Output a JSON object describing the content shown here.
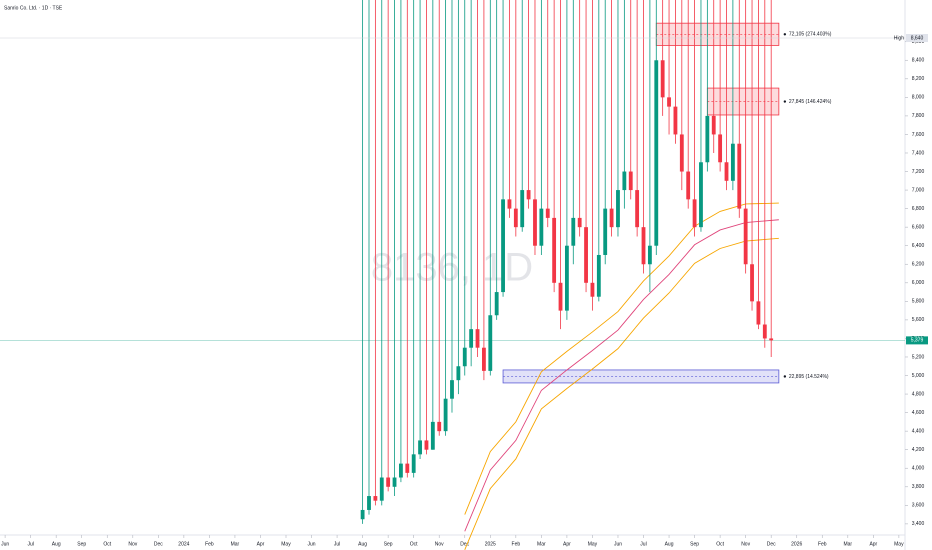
{
  "header": {
    "title": "Sanrio Co. Ltd. · 1D · TSE"
  },
  "chart_data": {
    "type": "candlestick",
    "watermark": "8136, 1D",
    "up_color": "#089981",
    "down_color": "#f23645",
    "x": [
      14.0,
      14.25,
      14.5,
      14.75,
      15.0,
      15.25,
      15.5,
      15.75,
      16.0,
      16.25,
      16.5,
      16.75,
      17.0,
      17.25,
      17.5,
      17.75,
      18.0,
      18.25,
      18.5,
      18.75,
      19.0,
      19.25,
      19.5,
      19.75,
      20.0,
      20.25,
      20.5,
      20.75,
      21.0,
      21.25,
      21.5,
      21.75,
      22.0,
      22.25,
      22.5,
      22.75,
      23.0,
      23.25,
      23.5,
      23.75,
      24.0,
      24.25,
      24.5,
      24.75,
      25.0,
      25.25,
      25.5,
      25.75,
      26.0,
      26.25,
      26.5,
      26.75,
      27.0,
      27.25,
      27.5,
      27.75,
      28.0,
      28.25,
      28.5,
      28.75,
      29.0,
      29.25,
      29.5,
      29.75,
      30.0
    ],
    "open": [
      3450,
      3550,
      3700,
      3650,
      3900,
      3800,
      3900,
      4050,
      3950,
      4150,
      4300,
      4200,
      4500,
      4400,
      4750,
      4950,
      5100,
      5300,
      5500,
      5300,
      5050,
      5650,
      5900,
      6900,
      6800,
      6600,
      7000,
      6900,
      6400,
      6800,
      6700,
      6000,
      5700,
      6400,
      6700,
      6600,
      6000,
      5850,
      6300,
      6800,
      6600,
      7000,
      7200,
      7000,
      6600,
      6200,
      6400,
      8400,
      8000,
      7900,
      7600,
      7200,
      6900,
      6600,
      7300,
      7800,
      7600,
      7300,
      7100,
      7500,
      6800,
      6200,
      5800,
      5550,
      5400
    ],
    "high": {
      "name": "High",
      "value": 8640,
      "label": "8,640"
    },
    "low": [
      3400,
      3500,
      3600,
      3600,
      3750,
      3700,
      3850,
      3900,
      3900,
      4100,
      4150,
      4200,
      4350,
      4350,
      4600,
      4800,
      5000,
      5100,
      5200,
      4950,
      5000,
      5600,
      5850,
      6700,
      6500,
      6550,
      6800,
      6300,
      6300,
      6600,
      5900,
      5500,
      5600,
      6200,
      6500,
      5900,
      5700,
      5800,
      6200,
      6500,
      6500,
      6800,
      6900,
      6500,
      6100,
      5900,
      6300,
      7800,
      7600,
      7500,
      7000,
      6800,
      6500,
      6550,
      7200,
      7400,
      7200,
      7000,
      7000,
      6700,
      6100,
      5700,
      5500,
      5300,
      5200
    ],
    "close": [
      3550,
      3700,
      3650,
      3900,
      3800,
      3900,
      4050,
      3950,
      4150,
      4300,
      4200,
      4500,
      4400,
      4750,
      4950,
      5100,
      5300,
      5500,
      5300,
      5050,
      5650,
      5900,
      6900,
      6800,
      6600,
      7000,
      6900,
      6400,
      6800,
      6700,
      6000,
      5700,
      6400,
      6700,
      6600,
      6000,
      5850,
      6300,
      6800,
      6600,
      7000,
      7200,
      7000,
      6600,
      6200,
      6400,
      8400,
      8000,
      7900,
      7600,
      7200,
      6900,
      6600,
      7300,
      7800,
      7600,
      7300,
      7100,
      7500,
      6800,
      6200,
      5800,
      5550,
      5400,
      5379
    ],
    "lines": [
      {
        "color": "#f7a600",
        "x": [
          18,
          19,
          20,
          21,
          22,
          23,
          24,
          25,
          26,
          27,
          28,
          29,
          30.3
        ],
        "values": [
          3500,
          4180,
          4500,
          5040,
          5260,
          5470,
          5690,
          6020,
          6290,
          6610,
          6770,
          6850,
          6860
        ]
      },
      {
        "color": "#e0457b",
        "x": [
          18,
          19,
          20,
          21,
          22,
          23,
          24,
          25,
          26,
          27,
          28,
          29,
          30.3
        ],
        "values": [
          3320,
          3980,
          4300,
          4840,
          5060,
          5270,
          5490,
          5820,
          6090,
          6410,
          6570,
          6650,
          6680
        ]
      },
      {
        "color": "#f7a600",
        "x": [
          18,
          19,
          20,
          21,
          22,
          23,
          24,
          25,
          26,
          27,
          28,
          29,
          30.3
        ],
        "values": [
          3120,
          3780,
          4100,
          4640,
          4860,
          5070,
          5290,
          5620,
          5890,
          6210,
          6370,
          6450,
          6480
        ]
      }
    ],
    "zones": [
      {
        "x_start": 25.5,
        "x_end": 30.3,
        "top": 8800,
        "bottom": 8560,
        "mid": 8680,
        "color": "#f23645",
        "label": "72,105 (274.403%)"
      },
      {
        "x_start": 27.5,
        "x_end": 30.3,
        "top": 8100,
        "bottom": 7810,
        "mid": 7955,
        "color": "#f23645",
        "label": "27,845 (146.424%)"
      },
      {
        "x_start": 19.5,
        "x_end": 30.3,
        "top": 5060,
        "bottom": 4920,
        "mid": 4990,
        "color": "#5b5bd6",
        "label": "22,895 (14.524%)"
      }
    ],
    "last_price": {
      "value": 5379,
      "label": "5,379",
      "color": "#089981"
    },
    "xlim": [
      -0.2,
      35.24
    ],
    "xticks": [
      {
        "value": 0,
        "label": "Jun"
      },
      {
        "value": 1,
        "label": "Jul"
      },
      {
        "value": 2,
        "label": "Aug"
      },
      {
        "value": 3,
        "label": "Sep"
      },
      {
        "value": 4,
        "label": "Oct"
      },
      {
        "value": 5,
        "label": "Nov"
      },
      {
        "value": 6,
        "label": "Dec"
      },
      {
        "value": 7,
        "label": "2024"
      },
      {
        "value": 8,
        "label": "Feb"
      },
      {
        "value": 9,
        "label": "Mar"
      },
      {
        "value": 10,
        "label": "Apr"
      },
      {
        "value": 11,
        "label": "May"
      },
      {
        "value": 12,
        "label": "Jun"
      },
      {
        "value": 13,
        "label": "Jul"
      },
      {
        "value": 14,
        "label": "Aug"
      },
      {
        "value": 15,
        "label": "Sep"
      },
      {
        "value": 16,
        "label": "Oct"
      },
      {
        "value": 17,
        "label": "Nov"
      },
      {
        "value": 18,
        "label": "Dec"
      },
      {
        "value": 19,
        "label": "2025"
      },
      {
        "value": 20,
        "label": "Feb"
      },
      {
        "value": 21,
        "label": "Mar"
      },
      {
        "value": 22,
        "label": "Apr"
      },
      {
        "value": 23,
        "label": "May"
      },
      {
        "value": 24,
        "label": "Jun"
      },
      {
        "value": 25,
        "label": "Jul"
      },
      {
        "value": 26,
        "label": "Aug"
      },
      {
        "value": 27,
        "label": "Sep"
      },
      {
        "value": 28,
        "label": "Oct"
      },
      {
        "value": 29,
        "label": "Nov"
      },
      {
        "value": 30,
        "label": "Dec"
      },
      {
        "value": 31,
        "label": "2026"
      },
      {
        "value": 32,
        "label": "Feb"
      },
      {
        "value": 33,
        "label": "Mar"
      },
      {
        "value": 34,
        "label": "Apr"
      },
      {
        "value": 35,
        "label": "May"
      }
    ],
    "ylim": [
      3280,
      9050
    ],
    "yticks": [
      {
        "value": 3400,
        "label": "3,400"
      },
      {
        "value": 3600,
        "label": "3,600"
      },
      {
        "value": 3800,
        "label": "3,800"
      },
      {
        "value": 4000,
        "label": "4,000"
      },
      {
        "value": 4200,
        "label": "4,200"
      },
      {
        "value": 4400,
        "label": "4,400"
      },
      {
        "value": 4600,
        "label": "4,600"
      },
      {
        "value": 4800,
        "label": "4,800"
      },
      {
        "value": 5000,
        "label": "5,000"
      },
      {
        "value": 5200,
        "label": "5,200"
      },
      {
        "value": 5400,
        "label": "5,400"
      },
      {
        "value": 5600,
        "label": "5,600"
      },
      {
        "value": 5800,
        "label": "5,800"
      },
      {
        "value": 6000,
        "label": "6,000"
      },
      {
        "value": 6200,
        "label": "6,200"
      },
      {
        "value": 6400,
        "label": "6,400"
      },
      {
        "value": 6600,
        "label": "6,600"
      },
      {
        "value": 6800,
        "label": "6,800"
      },
      {
        "value": 7000,
        "label": "7,000"
      },
      {
        "value": 7200,
        "label": "7,200"
      },
      {
        "value": 7400,
        "label": "7,400"
      },
      {
        "value": 7600,
        "label": "7,600"
      },
      {
        "value": 7800,
        "label": "7,800"
      },
      {
        "value": 8000,
        "label": "8,000"
      },
      {
        "value": 8200,
        "label": "8,200"
      },
      {
        "value": 8400,
        "label": "8,400"
      },
      {
        "value": 8600,
        "label": "8,600"
      }
    ]
  }
}
